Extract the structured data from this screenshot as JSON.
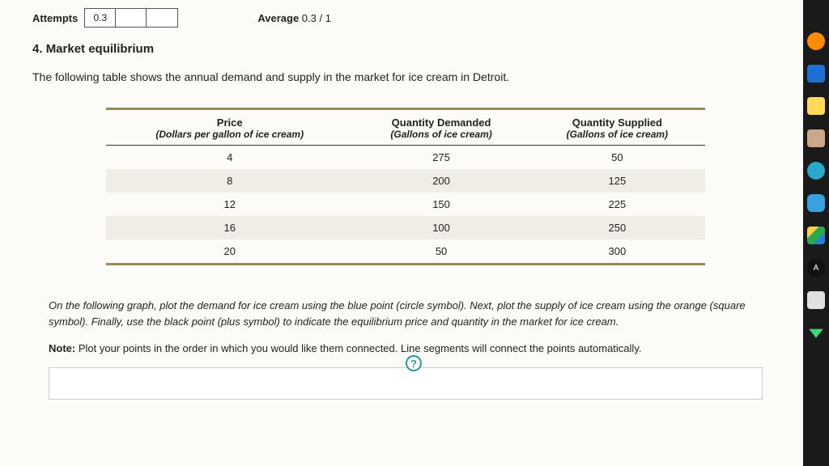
{
  "top": {
    "attempts_label": "Attempts",
    "attempt_values": [
      "0.3",
      "",
      ""
    ],
    "average_label": "Average",
    "average_value": "0.3 / 1"
  },
  "question": {
    "number": "4.",
    "title": "Market equilibrium",
    "intro": "The following table shows the annual demand and supply in the market for ice cream in Detroit."
  },
  "table": {
    "columns": [
      {
        "title": "Price",
        "sub": "(Dollars per gallon of ice cream)"
      },
      {
        "title": "Quantity Demanded",
        "sub": "(Gallons of ice cream)"
      },
      {
        "title": "Quantity Supplied",
        "sub": "(Gallons of ice cream)"
      }
    ],
    "rows": [
      [
        "4",
        "275",
        "50"
      ],
      [
        "8",
        "200",
        "125"
      ],
      [
        "12",
        "150",
        "225"
      ],
      [
        "16",
        "100",
        "250"
      ],
      [
        "20",
        "50",
        "300"
      ]
    ],
    "alt_row_color": "#efede6",
    "rule_color": "#9a8a5a"
  },
  "instructions": {
    "p1": "On the following graph, plot the demand for ice cream using the blue point (circle symbol). Next, plot the supply of ice cream using the orange (square symbol). Finally, use the black point (plus symbol) to indicate the equilibrium price and quantity in the market for ice cream.",
    "note_label": "Note:",
    "note_text": " Plot your points in the order in which you would like them connected. Line segments will connect the points automatically."
  },
  "help_icon": "?",
  "sidebar_icons": [
    {
      "name": "app-orange-icon",
      "color": "#ff8c00"
    },
    {
      "name": "app-blue-icon",
      "color": "#1e6fd6"
    },
    {
      "name": "app-paint-icon",
      "color": "#ffd95a"
    },
    {
      "name": "app-brush-icon",
      "color": "#c9a98a"
    },
    {
      "name": "bongo-icon",
      "color": "#2aa7c9"
    },
    {
      "name": "cloud-icon",
      "color": "#3aa0e0"
    },
    {
      "name": "drive-icon",
      "color": "linear"
    },
    {
      "name": "aplus-icon",
      "color": "#111"
    },
    {
      "name": "doc-icon",
      "color": "#e0e0e0"
    },
    {
      "name": "chevron-down-icon",
      "color": "#3adb76"
    }
  ]
}
